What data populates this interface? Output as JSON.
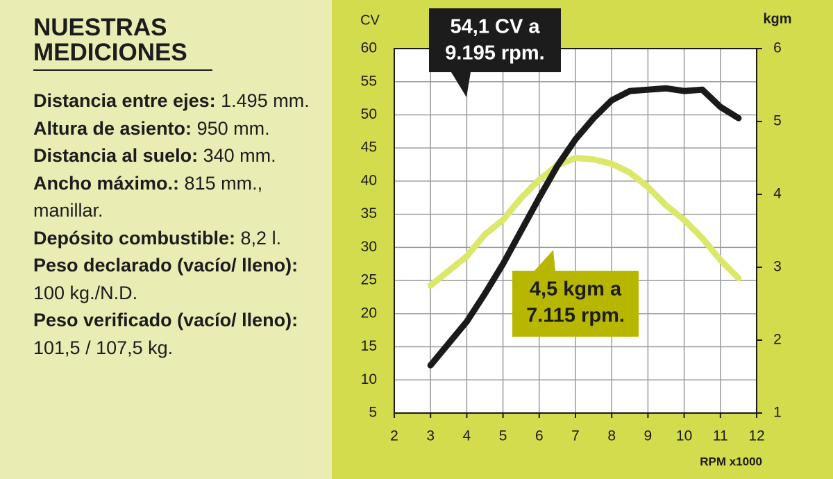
{
  "panel": {
    "title": [
      "NUESTRAS",
      "MEDICIONES"
    ],
    "specs": [
      {
        "label": "Distancia entre ejes:",
        "value": "1.495 mm."
      },
      {
        "label": "Altura de asiento:",
        "value": "950 mm."
      },
      {
        "label": "Distancia al suelo:",
        "value": "340 mm."
      },
      {
        "label": "Ancho máximo.:",
        "value": "815 mm., manillar."
      },
      {
        "label": "Depósito combustible:",
        "value": "8,2 l."
      },
      {
        "label": "Peso declarado (vacío/ lleno):",
        "value": "100 kg./N.D."
      },
      {
        "label": "Peso verificado (vacío/ lleno):",
        "value": "101,5 / 107,5 kg."
      }
    ]
  },
  "chart_data": {
    "type": "line",
    "y_label": "CV",
    "y2_label": "kgm",
    "x_label": "RPM x1000",
    "x": [
      3,
      3.5,
      4,
      4.5,
      5,
      5.5,
      6,
      6.5,
      7,
      7.5,
      8,
      8.5,
      9,
      9.5,
      10,
      10.5,
      11,
      11.5
    ],
    "series": [
      {
        "color": "#1a1a1a",
        "values": [
          12.2,
          15.5,
          18.8,
          23,
          27.5,
          32.5,
          37.5,
          42.3,
          46.3,
          49.5,
          52.2,
          53.6,
          53.8,
          54,
          53.6,
          53.8,
          51.2,
          49.5
        ]
      },
      {
        "color": "#dce86c",
        "axis": "y2",
        "values": [
          2.75,
          2.95,
          3.15,
          3.45,
          3.65,
          3.95,
          4.2,
          4.4,
          4.5,
          4.48,
          4.42,
          4.3,
          4.1,
          3.85,
          3.65,
          3.4,
          3.1,
          2.85
        ]
      }
    ],
    "xlim": [
      2,
      12
    ],
    "xticks": [
      2,
      3,
      4,
      5,
      6,
      7,
      8,
      9,
      10,
      11,
      12
    ],
    "ylim": [
      5,
      60
    ],
    "yticks": [
      5,
      10,
      15,
      20,
      25,
      30,
      35,
      40,
      45,
      50,
      55,
      60
    ],
    "y2lim": [
      1,
      6
    ],
    "y2ticks": [
      1,
      2,
      3,
      4,
      5,
      6
    ],
    "grid": true,
    "annotations": [
      {
        "lines": [
          "54,1 CV a",
          "9.195 rpm."
        ]
      },
      {
        "lines": [
          "4,5 kgm a",
          "7.115 rpm."
        ]
      }
    ]
  }
}
